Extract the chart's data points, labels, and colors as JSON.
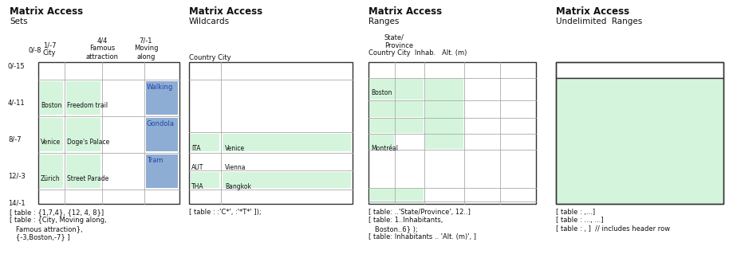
{
  "bg_color": "#ffffff",
  "green_fill": "#d4f5dc",
  "blue_fill": "#8eadd4",
  "border_color": "#333333",
  "cell_border": "#aaaaaa",
  "text_dark": "#111111",
  "text_blue": "#2244aa",
  "caption1": "[ table : {1,7,4}, {12, 4, 8}]\n[ table : {City, Moving along,\n   Famous attraction},\n   {-3,Boston,-7} ]",
  "caption2": "[ table : :'C*', :'*T*' ]);",
  "caption3": "[ table: ..'State/Province', 12..]\n[ table: 1..Inhabitants,\n   Boston..6} );\n[ table: Inhabitants .. 'Alt. (m)', ]",
  "caption4": "[ table : ,...]\n[ table : ..., ...]\n[ table : , ]  // includes header row"
}
